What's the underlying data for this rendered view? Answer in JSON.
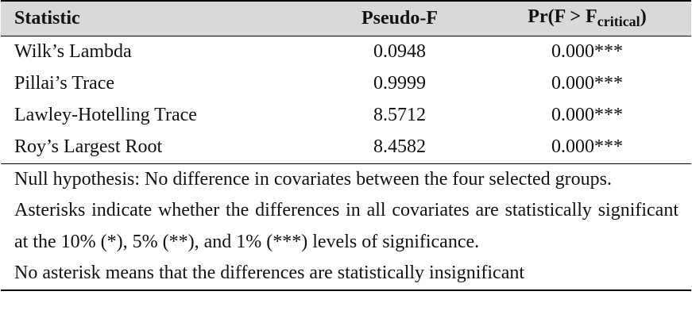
{
  "table": {
    "header": [
      "Statistic",
      "Pseudo-F",
      {
        "main": "Pr(F > F",
        "sub": "critical",
        "end": ")"
      }
    ],
    "rows": [
      [
        "Wilk’s Lambda",
        "0.0948",
        "0.000***"
      ],
      [
        "Pillai’s Trace",
        "0.9999",
        "0.000***"
      ],
      [
        "Lawley-Hotelling Trace",
        "8.5712",
        "0.000***"
      ],
      [
        "Roy’s Largest Root",
        "8.4582",
        "0.000***"
      ]
    ],
    "notes": [
      "Null hypothesis: No difference in covariates between the four selected groups.",
      "Asterisks indicate whether the differences in all covariates are statistically significant at the 10% (*), 5% (**), and 1% (***) levels of significance.",
      "No asterisk means that the differences are statistically insignificant"
    ]
  }
}
